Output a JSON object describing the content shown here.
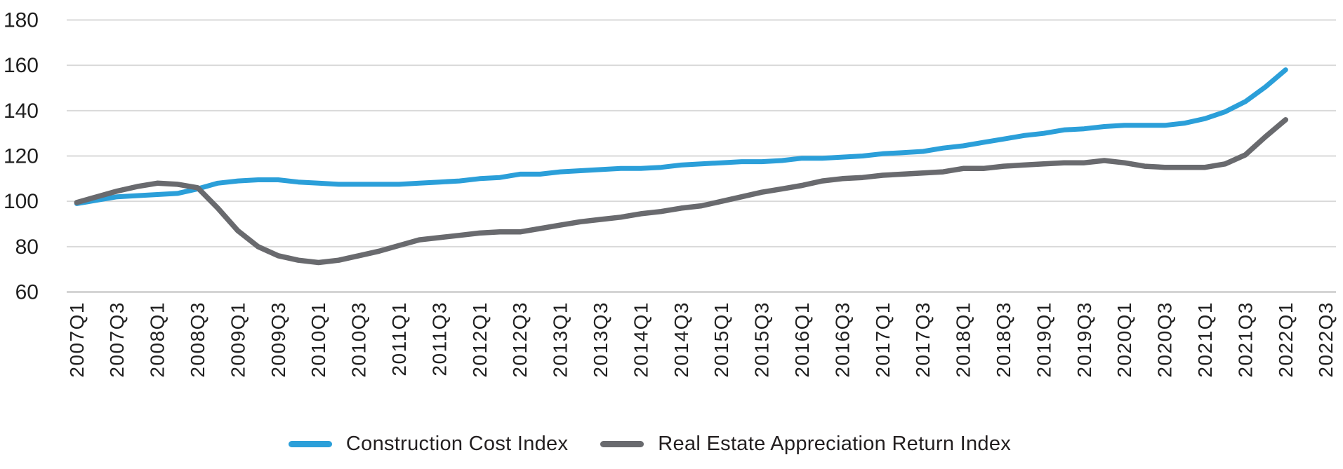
{
  "chart_data": {
    "type": "line",
    "title": "",
    "xlabel": "",
    "ylabel": "",
    "grid": "horizontal",
    "legend_position": "bottom",
    "y_axis": {
      "min": 60,
      "max": 180,
      "step": 20,
      "tick_labels": [
        "180",
        "160",
        "140",
        "120",
        "100",
        "80",
        "60"
      ]
    },
    "x_axis": {
      "total_categories": 63,
      "first_category": "2007Q1",
      "last_category": "2022Q3",
      "tick_labels": [
        "2007Q1",
        "2007Q3",
        "2008Q1",
        "2008Q3",
        "2009Q1",
        "2009Q3",
        "2010Q1",
        "2010Q3",
        "2011Q1",
        "2011Q3",
        "2012Q1",
        "2012Q3",
        "2013Q1",
        "2013Q3",
        "2014Q1",
        "2014Q3",
        "2015Q1",
        "2015Q3",
        "2016Q1",
        "2016Q3",
        "2017Q1",
        "2017Q3",
        "2018Q1",
        "2018Q3",
        "2019Q1",
        "2019Q3",
        "2020Q1",
        "2020Q3",
        "2021Q1",
        "2021Q3",
        "2022Q1",
        "2022Q3"
      ]
    },
    "data_quarters": [
      "2007Q1",
      "2007Q2",
      "2007Q3",
      "2007Q4",
      "2008Q1",
      "2008Q2",
      "2008Q3",
      "2008Q4",
      "2009Q1",
      "2009Q2",
      "2009Q3",
      "2009Q4",
      "2010Q1",
      "2010Q2",
      "2010Q3",
      "2010Q4",
      "2011Q1",
      "2011Q2",
      "2011Q3",
      "2011Q4",
      "2012Q1",
      "2012Q2",
      "2012Q3",
      "2012Q4",
      "2013Q1",
      "2013Q2",
      "2013Q3",
      "2013Q4",
      "2014Q1",
      "2014Q2",
      "2014Q3",
      "2014Q4",
      "2015Q1",
      "2015Q2",
      "2015Q3",
      "2015Q4",
      "2016Q1",
      "2016Q2",
      "2016Q3",
      "2016Q4",
      "2017Q1",
      "2017Q2",
      "2017Q3",
      "2017Q4",
      "2018Q1",
      "2018Q2",
      "2018Q3",
      "2018Q4",
      "2019Q1",
      "2019Q2",
      "2019Q3",
      "2019Q4",
      "2020Q1",
      "2020Q2",
      "2020Q3",
      "2020Q4",
      "2021Q1",
      "2021Q2",
      "2021Q3",
      "2021Q4",
      "2022Q1"
    ],
    "series": [
      {
        "name": "Construction Cost Index",
        "color": "#2B9FD9",
        "stroke_width": 7,
        "values": [
          99,
          100.5,
          102,
          102.5,
          103,
          103.5,
          105.5,
          108,
          109,
          109.5,
          109.5,
          108.5,
          108,
          107.5,
          107.5,
          107.5,
          107.5,
          108,
          108.5,
          109,
          110,
          110.5,
          112,
          112,
          113,
          113.5,
          114,
          114.5,
          114.5,
          115,
          116,
          116.5,
          117,
          117.5,
          117.5,
          118,
          119,
          119,
          119.5,
          120,
          121,
          121.5,
          122,
          123.5,
          124.5,
          126,
          127.5,
          129,
          130,
          131.5,
          132,
          133,
          133.5,
          133.5,
          133.5,
          134.5,
          136.5,
          139.5,
          144,
          150.5,
          158
        ]
      },
      {
        "name": "Real Estate Appreciation Return Index",
        "color": "#696A6E",
        "stroke_width": 7.5,
        "values": [
          99.5,
          102,
          104.5,
          106.5,
          108,
          107.5,
          106,
          97,
          87,
          80,
          76,
          74,
          73,
          74,
          76,
          78,
          80.5,
          83,
          84,
          85,
          86,
          86.5,
          86.5,
          88,
          89.5,
          91,
          92,
          93,
          94.5,
          95.5,
          97,
          98,
          100,
          102,
          104,
          105.5,
          107,
          109,
          110,
          110.5,
          111.5,
          112,
          112.5,
          113,
          114.5,
          114.5,
          115.5,
          116,
          116.5,
          117,
          117,
          118,
          117,
          115.5,
          115,
          115,
          115,
          116.5,
          120.5,
          128.5,
          136
        ]
      }
    ],
    "colors": {
      "gridline": "#D9D9D9",
      "bottom_axis_line": "#CBCBCB",
      "tick_text": "#1F1F1F"
    }
  }
}
